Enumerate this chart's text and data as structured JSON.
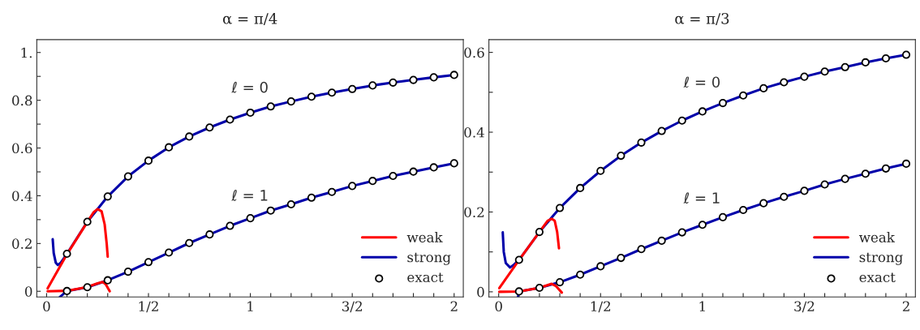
{
  "chart_data": [
    {
      "type": "line",
      "title": "α = π/4",
      "xlim": [
        -0.048,
        2.045
      ],
      "ylim": [
        -0.024,
        1.054
      ],
      "xticks": [
        0,
        {
          "value": 0.1,
          "label": null
        },
        {
          "value": 0.2,
          "label": null
        },
        {
          "value": 0.3,
          "label": null
        },
        {
          "value": 0.4,
          "label": null
        },
        {
          "value": 0.5,
          "label": "1/2"
        },
        {
          "value": 0.6,
          "label": null
        },
        {
          "value": 0.7,
          "label": null
        },
        {
          "value": 0.8,
          "label": null
        },
        {
          "value": 0.9,
          "label": null
        },
        1,
        {
          "value": 1.1,
          "label": null
        },
        {
          "value": 1.2,
          "label": null
        },
        {
          "value": 1.3,
          "label": null
        },
        {
          "value": 1.4,
          "label": null
        },
        {
          "value": 1.5,
          "label": "3/2"
        },
        {
          "value": 1.6,
          "label": null
        },
        {
          "value": 1.7,
          "label": null
        },
        {
          "value": 1.8,
          "label": null
        },
        {
          "value": 1.9,
          "label": null
        },
        2
      ],
      "yticks": [
        0,
        {
          "value": 0.1,
          "label": null
        },
        0.2,
        {
          "value": 0.3,
          "label": null
        },
        0.4,
        {
          "value": 0.5,
          "label": null
        },
        0.6,
        {
          "value": 0.7,
          "label": null
        },
        0.8,
        {
          "value": 0.9,
          "label": null
        },
        {
          "value": 1.0,
          "label": "1."
        }
      ],
      "grid": false,
      "legend": "bottom right",
      "line_style": "solid",
      "annotations": [
        "ℓ = 0",
        "ℓ = 1"
      ],
      "series": [
        {
          "name": "weak",
          "color": "#ff0000",
          "x": [
            0.005,
            0.1,
            0.2,
            0.23,
            0.25,
            0.27,
            0.285,
            0.295,
            0.3
          ],
          "values": [
            0.012,
            0.155,
            0.29,
            0.33,
            0.344,
            0.335,
            0.28,
            0.2,
            0.145
          ]
        },
        {
          "color": "#ff0000",
          "x": [
            0.005,
            0.1,
            0.2,
            0.25,
            0.275,
            0.29,
            0.31
          ],
          "values": [
            0,
            0.002,
            0.018,
            0.033,
            0.039,
            0.03,
            0.0
          ]
        },
        {
          "name": "strong",
          "color": "#0000aa",
          "x": [
            0.03,
            0.035,
            0.045,
            0.055,
            0.07,
            0.1,
            0.2,
            0.3,
            0.4,
            0.5,
            0.6,
            0.7,
            0.8,
            0.9,
            1.0,
            1.1,
            1.2,
            1.3,
            1.4,
            1.5,
            1.6,
            1.7,
            1.8,
            1.9,
            2.0
          ],
          "values": [
            0.218,
            0.16,
            0.12,
            0.11,
            0.12,
            0.157,
            0.291,
            0.397,
            0.481,
            0.547,
            0.603,
            0.648,
            0.686,
            0.719,
            0.748,
            0.774,
            0.795,
            0.815,
            0.832,
            0.847,
            0.862,
            0.874,
            0.885,
            0.896,
            0.906
          ]
        },
        {
          "color": "#0000aa",
          "x": [
            0.065,
            0.1,
            0.2,
            0.3,
            0.4,
            0.5,
            0.6,
            0.7,
            0.8,
            0.9,
            1.0,
            1.1,
            1.2,
            1.3,
            1.4,
            1.5,
            1.6,
            1.7,
            1.8,
            1.9,
            2.0
          ],
          "values": [
            -0.024,
            0.001,
            0.017,
            0.046,
            0.082,
            0.122,
            0.162,
            0.202,
            0.238,
            0.274,
            0.306,
            0.338,
            0.364,
            0.392,
            0.416,
            0.441,
            0.462,
            0.483,
            0.501,
            0.519,
            0.536
          ]
        },
        {
          "name": "exact",
          "type": "scatter",
          "marker": "circle",
          "color": "#ffffff",
          "x": [
            0.1,
            0.2,
            0.3,
            0.4,
            0.5,
            0.6,
            0.7,
            0.8,
            0.9,
            1.0,
            1.1,
            1.2,
            1.3,
            1.4,
            1.5,
            1.6,
            1.7,
            1.8,
            1.9,
            2.0
          ],
          "values": [
            0.157,
            0.291,
            0.397,
            0.481,
            0.547,
            0.603,
            0.648,
            0.686,
            0.719,
            0.748,
            0.774,
            0.795,
            0.815,
            0.832,
            0.847,
            0.862,
            0.874,
            0.885,
            0.896,
            0.906
          ]
        },
        {
          "type": "scatter",
          "marker": "circle",
          "color": "#ffffff",
          "x": [
            0.1,
            0.2,
            0.3,
            0.4,
            0.5,
            0.6,
            0.7,
            0.8,
            0.9,
            1.0,
            1.1,
            1.2,
            1.3,
            1.4,
            1.5,
            1.6,
            1.7,
            1.8,
            1.9,
            2.0
          ],
          "values": [
            0.001,
            0.017,
            0.046,
            0.082,
            0.122,
            0.162,
            0.202,
            0.238,
            0.274,
            0.306,
            0.338,
            0.364,
            0.392,
            0.416,
            0.441,
            0.462,
            0.483,
            0.501,
            0.519,
            0.536
          ]
        }
      ]
    },
    {
      "type": "line",
      "title": "α = π/3",
      "xlim": [
        -0.048,
        2.045
      ],
      "ylim": [
        -0.013,
        0.632
      ],
      "xticks": [
        0,
        {
          "value": 0.1,
          "label": null
        },
        {
          "value": 0.2,
          "label": null
        },
        {
          "value": 0.3,
          "label": null
        },
        {
          "value": 0.4,
          "label": null
        },
        {
          "value": 0.5,
          "label": "1/2"
        },
        {
          "value": 0.6,
          "label": null
        },
        {
          "value": 0.7,
          "label": null
        },
        {
          "value": 0.8,
          "label": null
        },
        {
          "value": 0.9,
          "label": null
        },
        1,
        {
          "value": 1.1,
          "label": null
        },
        {
          "value": 1.2,
          "label": null
        },
        {
          "value": 1.3,
          "label": null
        },
        {
          "value": 1.4,
          "label": null
        },
        {
          "value": 1.5,
          "label": "3/2"
        },
        {
          "value": 1.6,
          "label": null
        },
        {
          "value": 1.7,
          "label": null
        },
        {
          "value": 1.8,
          "label": null
        },
        {
          "value": 1.9,
          "label": null
        },
        2
      ],
      "yticks": [
        0,
        {
          "value": 0.1,
          "label": null
        },
        0.2,
        {
          "value": 0.3,
          "label": null
        },
        0.4,
        {
          "value": 0.5,
          "label": null
        },
        0.6
      ],
      "grid": false,
      "legend": "bottom right",
      "line_style": "solid",
      "annotations": [
        "ℓ = 0",
        "ℓ = 1"
      ],
      "series": [
        {
          "name": "weak",
          "color": "#ff0000",
          "x": [
            0.003,
            0.1,
            0.2,
            0.24,
            0.26,
            0.275,
            0.287,
            0.296
          ],
          "values": [
            0.009,
            0.08,
            0.15,
            0.178,
            0.183,
            0.178,
            0.15,
            0.109
          ]
        },
        {
          "color": "#ff0000",
          "x": [
            0.003,
            0.1,
            0.2,
            0.26,
            0.28,
            0.31
          ],
          "values": [
            0,
            0.001,
            0.01,
            0.02,
            0.015,
            -0.002
          ]
        },
        {
          "name": "strong",
          "color": "#0000aa",
          "x": [
            0.02,
            0.025,
            0.035,
            0.056,
            0.075,
            0.1,
            0.2,
            0.3,
            0.4,
            0.5,
            0.6,
            0.7,
            0.8,
            0.9,
            1.0,
            1.1,
            1.2,
            1.3,
            1.4,
            1.5,
            1.6,
            1.7,
            1.8,
            1.9,
            2.0
          ],
          "values": [
            0.149,
            0.1,
            0.072,
            0.061,
            0.068,
            0.08,
            0.15,
            0.21,
            0.26,
            0.303,
            0.341,
            0.374,
            0.403,
            0.429,
            0.452,
            0.473,
            0.492,
            0.51,
            0.525,
            0.539,
            0.552,
            0.563,
            0.575,
            0.585,
            0.594
          ]
        },
        {
          "color": "#0000aa",
          "x": [
            0.095,
            0.1,
            0.2,
            0.3,
            0.4,
            0.5,
            0.6,
            0.7,
            0.8,
            0.9,
            1.0,
            1.1,
            1.2,
            1.3,
            1.4,
            1.5,
            1.6,
            1.7,
            1.8,
            1.9,
            2.0
          ],
          "values": [
            -0.013,
            0.001,
            0.01,
            0.024,
            0.043,
            0.064,
            0.085,
            0.107,
            0.128,
            0.149,
            0.168,
            0.187,
            0.205,
            0.222,
            0.238,
            0.253,
            0.269,
            0.283,
            0.296,
            0.309,
            0.321
          ]
        },
        {
          "name": "exact",
          "type": "scatter",
          "marker": "circle",
          "color": "#ffffff",
          "x": [
            0.1,
            0.2,
            0.3,
            0.4,
            0.5,
            0.6,
            0.7,
            0.8,
            0.9,
            1.0,
            1.1,
            1.2,
            1.3,
            1.4,
            1.5,
            1.6,
            1.7,
            1.8,
            1.9,
            2.0
          ],
          "values": [
            0.08,
            0.15,
            0.21,
            0.26,
            0.303,
            0.341,
            0.374,
            0.403,
            0.429,
            0.452,
            0.473,
            0.492,
            0.51,
            0.525,
            0.539,
            0.552,
            0.563,
            0.575,
            0.585,
            0.594
          ]
        },
        {
          "type": "scatter",
          "marker": "circle",
          "color": "#ffffff",
          "x": [
            0.1,
            0.2,
            0.3,
            0.4,
            0.5,
            0.6,
            0.7,
            0.8,
            0.9,
            1.0,
            1.1,
            1.2,
            1.3,
            1.4,
            1.5,
            1.6,
            1.7,
            1.8,
            1.9,
            2.0
          ],
          "values": [
            0.001,
            0.01,
            0.024,
            0.043,
            0.064,
            0.085,
            0.107,
            0.128,
            0.149,
            0.168,
            0.187,
            0.205,
            0.222,
            0.238,
            0.253,
            0.269,
            0.283,
            0.296,
            0.309,
            0.321
          ]
        }
      ]
    }
  ]
}
